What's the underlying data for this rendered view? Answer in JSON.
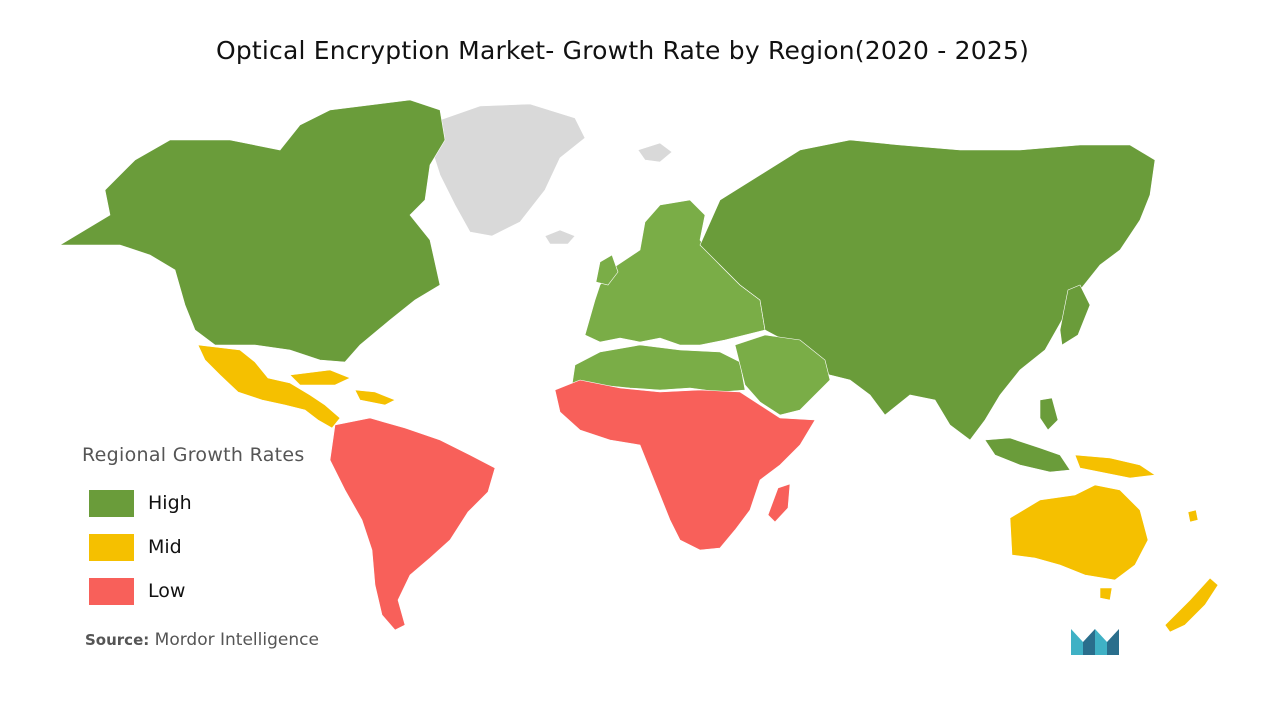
{
  "title": "Optical Encryption Market- Growth Rate by Region(2020 - 2025)",
  "legend": {
    "title": "Regional Growth Rates",
    "items": [
      {
        "label": "High",
        "color": "#6a9c3a"
      },
      {
        "label": "Mid",
        "color": "#f5c000"
      },
      {
        "label": "Low",
        "color": "#f8605a"
      }
    ]
  },
  "region_colors": {
    "high": "#6a9c3a",
    "high_light": "#7aad47",
    "mid": "#f5c000",
    "low": "#f8605a",
    "no_data": "#d9d9d9"
  },
  "regions": {
    "north_america": "High",
    "europe": "High",
    "asia": "High",
    "middle_east_north_africa": "High",
    "central_america_caribbean": "Mid",
    "oceania": "Mid",
    "south_america": "Low",
    "sub_saharan_africa": "Low"
  },
  "source": {
    "label": "Source:",
    "value": "Mordor Intelligence"
  },
  "logo": {
    "icon": "mordor-intelligence-logo",
    "colors": [
      "#3fb1c5",
      "#2a6e8c"
    ]
  }
}
